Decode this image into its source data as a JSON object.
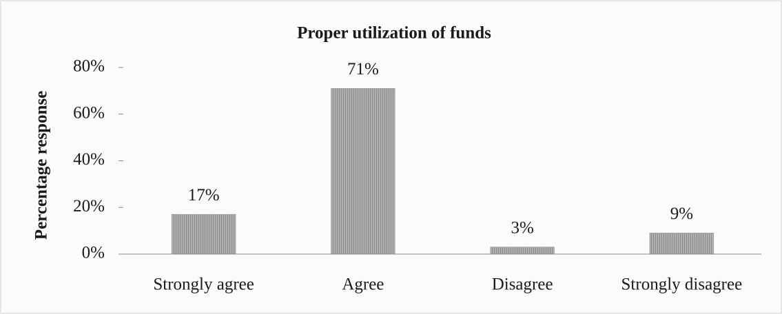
{
  "chart_data": {
    "type": "bar",
    "title": "Proper utilization of funds",
    "y_label": "Percentage response",
    "categories": [
      "Strongly agree",
      "Agree",
      "Disagree",
      "Strongly disagree"
    ],
    "values": [
      17,
      71,
      3,
      9
    ],
    "value_labels": [
      "17%",
      "71%",
      "3%",
      "9%"
    ],
    "color": "#a3a3a3",
    "ylim": [
      0,
      80
    ],
    "yticks": [
      {
        "value": 0,
        "label": "0%"
      },
      {
        "value": 20,
        "label": "20%"
      },
      {
        "value": 40,
        "label": "40%"
      },
      {
        "value": 60,
        "label": "60%"
      },
      {
        "value": 80,
        "label": "80%"
      }
    ],
    "grid": false
  }
}
